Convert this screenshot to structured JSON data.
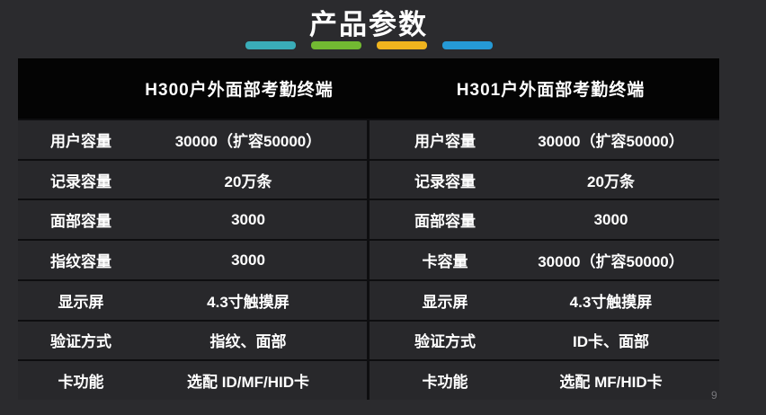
{
  "header": {
    "title": "产品参数"
  },
  "decor": {
    "dash_colors": [
      "#3aacb8",
      "#72b932",
      "#f0b41e",
      "#2599d5"
    ]
  },
  "table": {
    "columns": [
      {
        "header": "H300户外面部考勤终端",
        "rows": [
          {
            "label": "用户容量",
            "value": "30000（扩容50000）"
          },
          {
            "label": "记录容量",
            "value": "20万条"
          },
          {
            "label": "面部容量",
            "value": "3000"
          },
          {
            "label": "指纹容量",
            "value": "3000"
          },
          {
            "label": "显示屏",
            "value": "4.3寸触摸屏"
          },
          {
            "label": "验证方式",
            "value": "指纹、面部"
          },
          {
            "label": "卡功能",
            "value": "选配 ID/MF/HID卡"
          }
        ]
      },
      {
        "header": "H301户外面部考勤终端",
        "rows": [
          {
            "label": "用户容量",
            "value": "30000（扩容50000）"
          },
          {
            "label": "记录容量",
            "value": "20万条"
          },
          {
            "label": "面部容量",
            "value": "3000"
          },
          {
            "label": "卡容量",
            "value": "30000（扩容50000）"
          },
          {
            "label": "显示屏",
            "value": "4.3寸触摸屏"
          },
          {
            "label": "验证方式",
            "value": "ID卡、面部"
          },
          {
            "label": "卡功能",
            "value": "选配 MF/HID卡"
          }
        ]
      }
    ]
  },
  "footer": {
    "page_number": "9"
  }
}
